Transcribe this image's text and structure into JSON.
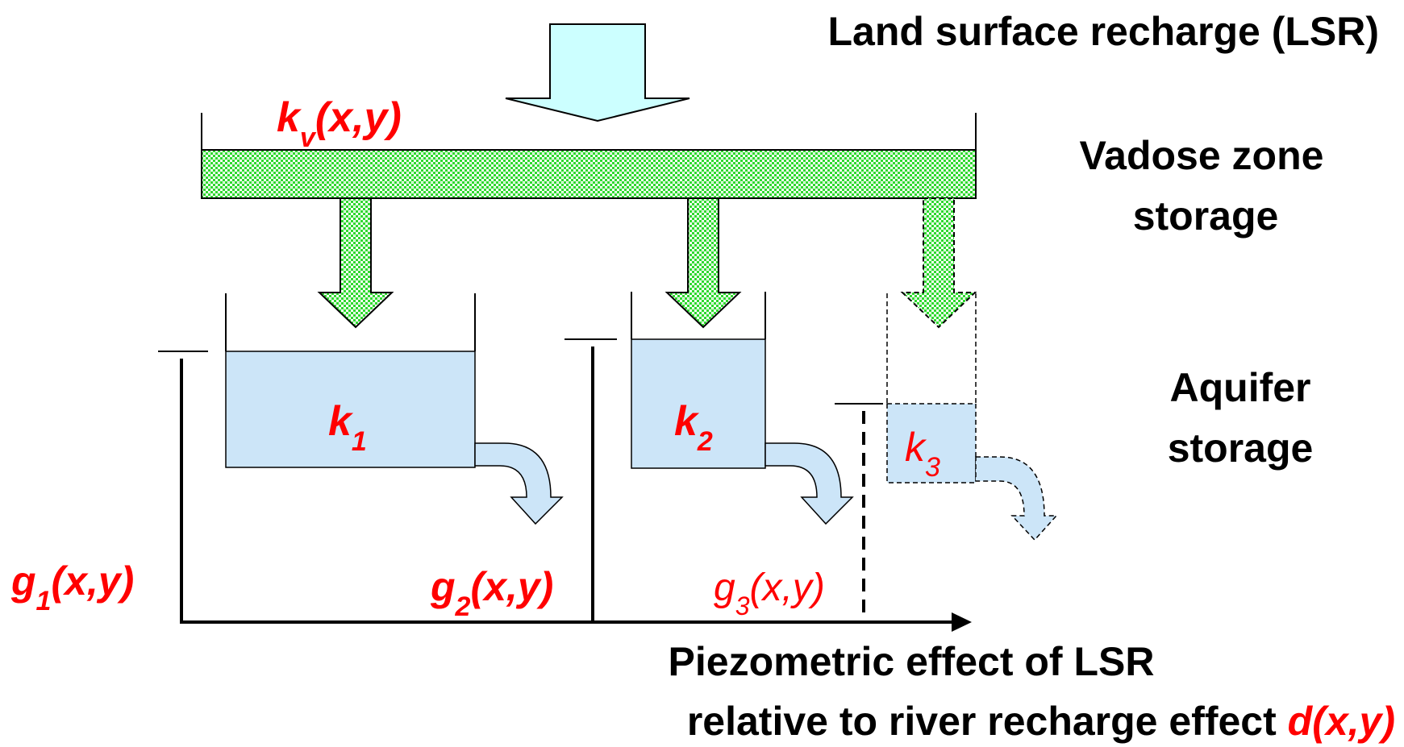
{
  "title": "Land surface recharge (LSR)",
  "vadose_label_line1": "Vadose zone",
  "vadose_label_line2": "storage",
  "aquifer_label_line1": "Aquifer",
  "aquifer_label_line2": "storage",
  "kv": {
    "base": "k",
    "sub": "v",
    "args": "(x,y)"
  },
  "k1": {
    "base": "k",
    "sub": "1"
  },
  "k2": {
    "base": "k",
    "sub": "2"
  },
  "k3": {
    "base": "k",
    "sub": "3"
  },
  "g1": {
    "base": "g",
    "sub": "1",
    "args": "(x,y)"
  },
  "g2": {
    "base": "g",
    "sub": "2",
    "args": "(x,y)"
  },
  "g3": {
    "base": "g",
    "sub": "3",
    "args": "(x,y)"
  },
  "axis_label_line1": "Piezometric effect of LSR",
  "axis_label_line2": "relative to river recharge effect ",
  "d": {
    "base": "d",
    "args": "(x,y)"
  },
  "colors": {
    "water": "#cce5f8",
    "arrow_fill": "#ccffff",
    "vadose_green": "#33dd33",
    "label_red": "#ff0000",
    "text_black": "#000000"
  }
}
